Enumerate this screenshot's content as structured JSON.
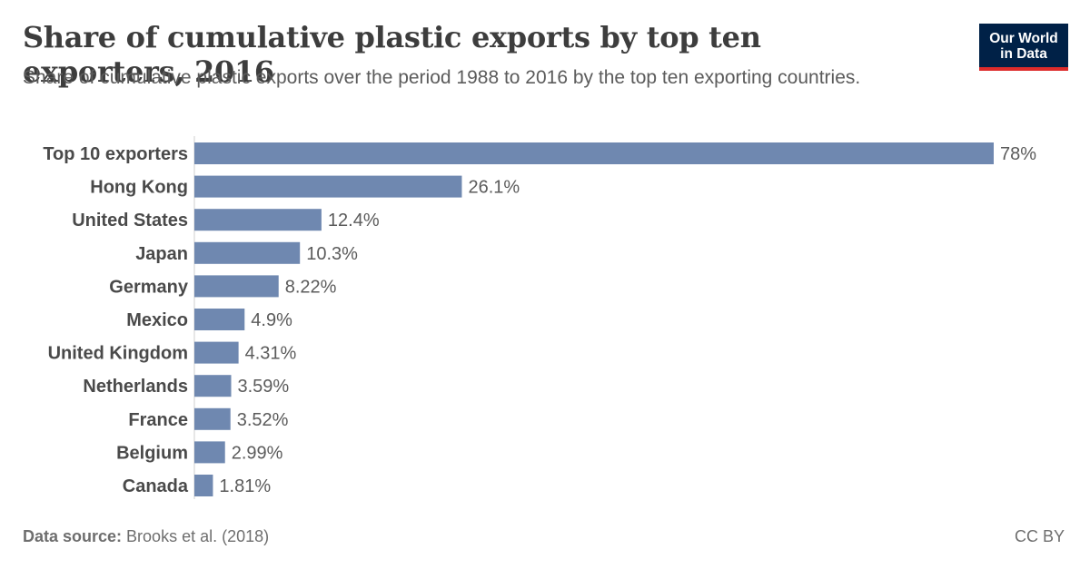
{
  "header": {
    "title": "Share of cumulative plastic exports by top ten exporters, 2016",
    "subtitle": "Share of cumulative plastic exports over the period 1988 to 2016 by the top ten exporting countries."
  },
  "logo": {
    "line1": "Our World",
    "line2": "in Data",
    "bg_color": "#002147",
    "accent_color": "#dc2b2b"
  },
  "footer": {
    "source_label": "Data source:",
    "source_text": " Brooks et al. (2018)",
    "license": "CC BY"
  },
  "chart_data": {
    "type": "bar",
    "orientation": "horizontal",
    "bar_color": "#6f88b0",
    "categories": [
      "Top 10 exporters",
      "Hong Kong",
      "United States",
      "Japan",
      "Germany",
      "Mexico",
      "United Kingdom",
      "Netherlands",
      "France",
      "Belgium",
      "Canada"
    ],
    "values": [
      78,
      26.1,
      12.4,
      10.3,
      8.22,
      4.9,
      4.31,
      3.59,
      3.52,
      2.99,
      1.81
    ],
    "value_labels": [
      "78%",
      "26.1%",
      "12.4%",
      "10.3%",
      "8.22%",
      "4.9%",
      "4.31%",
      "3.59%",
      "3.52%",
      "2.99%",
      "1.81%"
    ],
    "xlim": [
      0,
      78
    ],
    "unit": "%",
    "grid": false
  }
}
